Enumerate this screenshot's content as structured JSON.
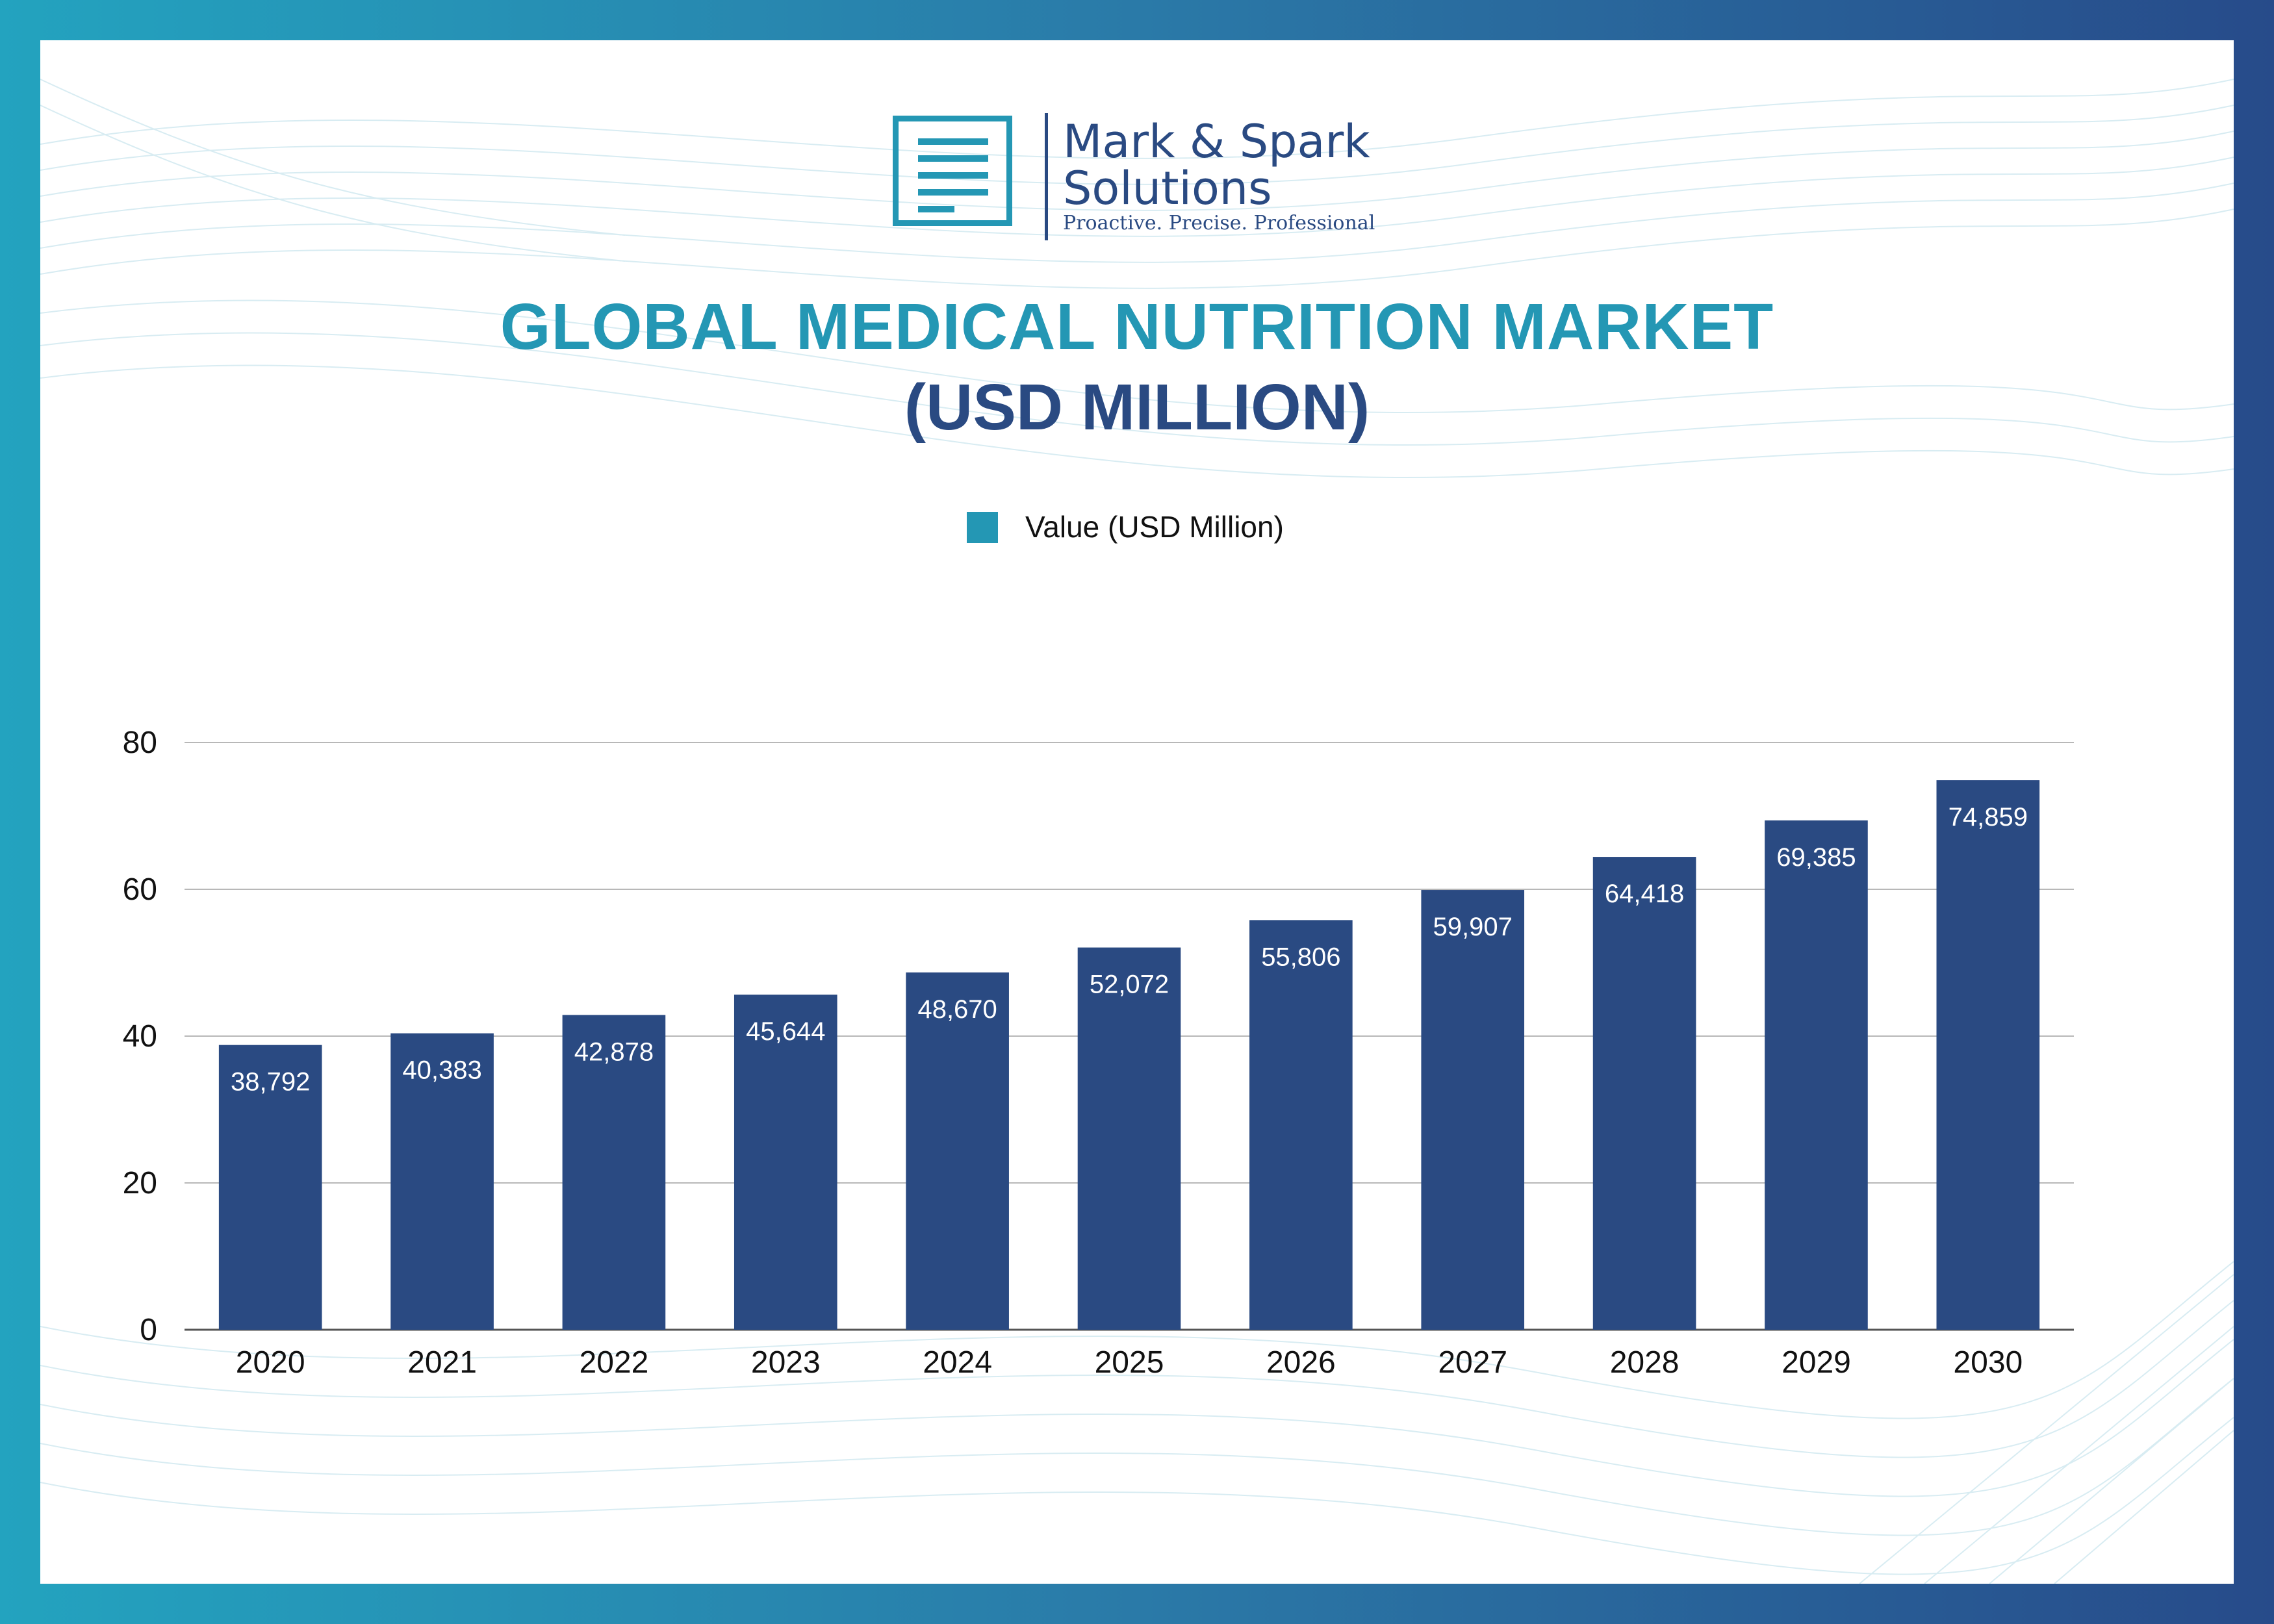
{
  "brand": {
    "line1": "Mark & Spark",
    "line2": "Solutions",
    "tagline": "Proactive. Precise. Professional"
  },
  "title": {
    "line1": "GLOBAL MEDICAL NUTRITION MARKET",
    "line2": "(USD MILLION)"
  },
  "colors": {
    "accent": "#2497b4",
    "navy": "#2a4a82",
    "bar": "#2a4a82"
  },
  "legend": {
    "label": "Value (USD Million)",
    "color": "#2497b4"
  },
  "chart_data": {
    "type": "bar",
    "title": "GLOBAL MEDICAL NUTRITION MARKET (USD MILLION)",
    "xlabel": "",
    "ylabel": "",
    "categories": [
      "2020",
      "2021",
      "2022",
      "2023",
      "2024",
      "2025",
      "2026",
      "2027",
      "2028",
      "2029",
      "2030"
    ],
    "series": [
      {
        "name": "Value (USD Million)",
        "values": [
          38.792,
          40.383,
          42.878,
          45.644,
          48.67,
          52.072,
          55.806,
          59.907,
          64.418,
          69.385,
          74.859
        ],
        "labels": [
          "38,792",
          "40,383",
          "42,878",
          "45,644",
          "48,670",
          "52,072",
          "55,806",
          "59,907",
          "64,418",
          "69,385",
          "74,859"
        ]
      }
    ],
    "ylim": [
      0,
      80
    ],
    "yticks": [
      "0",
      "20",
      "40",
      "60",
      "80"
    ],
    "ytick_values": [
      0,
      20,
      40,
      60,
      80
    ],
    "grid": true,
    "legend_position": "top-center"
  }
}
